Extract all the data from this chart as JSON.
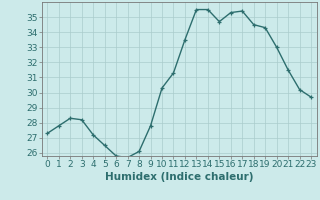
{
  "x": [
    0,
    1,
    2,
    3,
    4,
    5,
    6,
    7,
    8,
    9,
    10,
    11,
    12,
    13,
    14,
    15,
    16,
    17,
    18,
    19,
    20,
    21,
    22,
    23
  ],
  "y": [
    27.3,
    27.8,
    28.3,
    28.2,
    27.2,
    26.5,
    25.8,
    25.7,
    26.1,
    27.8,
    30.3,
    31.3,
    33.5,
    35.5,
    35.5,
    34.7,
    35.3,
    35.4,
    34.5,
    34.3,
    33.0,
    31.5,
    30.2,
    29.7
  ],
  "line_color": "#2d6e6e",
  "marker": "+",
  "bg_color": "#cceaea",
  "grid_color": "#aacccc",
  "xlabel": "Humidex (Indice chaleur)",
  "ylim": [
    25.8,
    36.0
  ],
  "yticks": [
    26,
    27,
    28,
    29,
    30,
    31,
    32,
    33,
    34,
    35
  ],
  "xticks": [
    0,
    1,
    2,
    3,
    4,
    5,
    6,
    7,
    8,
    9,
    10,
    11,
    12,
    13,
    14,
    15,
    16,
    17,
    18,
    19,
    20,
    21,
    22,
    23
  ],
  "tick_fontsize": 6.5,
  "xlabel_fontsize": 7.5,
  "linewidth": 1.0,
  "markersize": 3.5
}
